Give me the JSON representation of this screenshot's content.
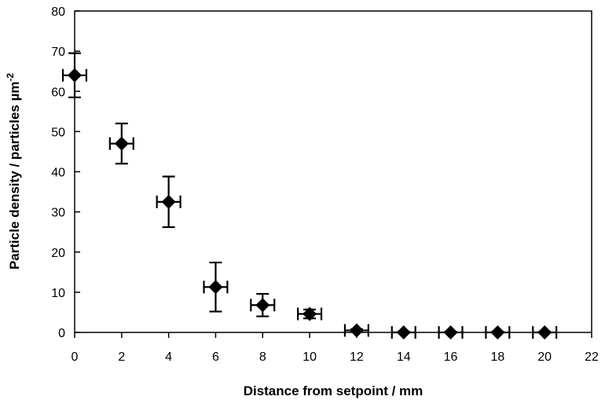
{
  "chart_data": {
    "type": "scatter",
    "title": "",
    "xlabel": "Distance from setpoint / mm",
    "ylabel_main": "Particle density / particles µm",
    "ylabel_sup": "-2",
    "xlim": [
      0,
      22
    ],
    "ylim": [
      0,
      80
    ],
    "xticks": [
      0,
      2,
      4,
      6,
      8,
      10,
      12,
      14,
      16,
      18,
      20,
      22
    ],
    "yticks": [
      0,
      10,
      20,
      30,
      40,
      50,
      60,
      70,
      80
    ],
    "grid": false,
    "legend": false,
    "marker": "diamond",
    "marker_color": "#000000",
    "points": [
      {
        "x": 0,
        "y": 64,
        "y_err": 5.5,
        "x_err": 0.5
      },
      {
        "x": 2,
        "y": 47,
        "y_err": 5,
        "x_err": 0.5
      },
      {
        "x": 4,
        "y": 32.5,
        "y_err": 6.3,
        "x_err": 0.5
      },
      {
        "x": 6,
        "y": 11.3,
        "y_err": 6.1,
        "x_err": 0.5
      },
      {
        "x": 8,
        "y": 6.8,
        "y_err": 2.8,
        "x_err": 0.5
      },
      {
        "x": 10,
        "y": 4.6,
        "y_err": 1.1,
        "x_err": 0.5
      },
      {
        "x": 12,
        "y": 0.5,
        "y_err": 0.3,
        "x_err": 0.5
      },
      {
        "x": 14,
        "y": 0,
        "y_err": 0.2,
        "x_err": 0.5
      },
      {
        "x": 16,
        "y": 0,
        "y_err": 0.2,
        "x_err": 0.5
      },
      {
        "x": 18,
        "y": 0,
        "y_err": 0.2,
        "x_err": 0.5
      },
      {
        "x": 20,
        "y": 0,
        "y_err": 0.2,
        "x_err": 0.5
      }
    ]
  }
}
